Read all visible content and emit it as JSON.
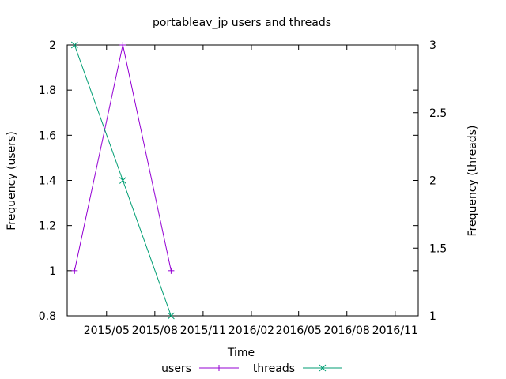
{
  "chart_data": {
    "type": "line",
    "title": "portableav_jp users and threads",
    "xlabel": "Time",
    "ylabel_left": "Frequency (users)",
    "ylabel_right": "Frequency (threads)",
    "x_ticks": [
      "2015/05",
      "2015/08",
      "2015/11",
      "2016/02",
      "2016/05",
      "2016/08",
      "2016/11"
    ],
    "xlim": [
      "2015-02-15",
      "2016-12-15"
    ],
    "x_tick_dates": [
      "2015-05-01",
      "2015-08-01",
      "2015-11-01",
      "2016-02-01",
      "2016-05-01",
      "2016-08-01",
      "2016-11-01"
    ],
    "y_left": {
      "ylim": [
        0.8,
        2
      ],
      "ticks": [
        "0.8",
        "1",
        "1.2",
        "1.4",
        "1.6",
        "1.8",
        "2"
      ]
    },
    "y_right": {
      "ylim": [
        1,
        3
      ],
      "ticks": [
        "1",
        "1.5",
        "2",
        "2.5",
        "3"
      ]
    },
    "grid": false,
    "legend": "bottom",
    "series": [
      {
        "name": "users",
        "axis": "left",
        "color": "#9400d3",
        "marker": "plus",
        "x": [
          "2015-03-01",
          "2015-06-01",
          "2015-09-01"
        ],
        "values": [
          1,
          2,
          1
        ]
      },
      {
        "name": "threads",
        "axis": "right",
        "color": "#009e73",
        "marker": "cross",
        "x": [
          "2015-03-01",
          "2015-06-01",
          "2015-09-01"
        ],
        "values": [
          3,
          2,
          1
        ]
      }
    ]
  }
}
